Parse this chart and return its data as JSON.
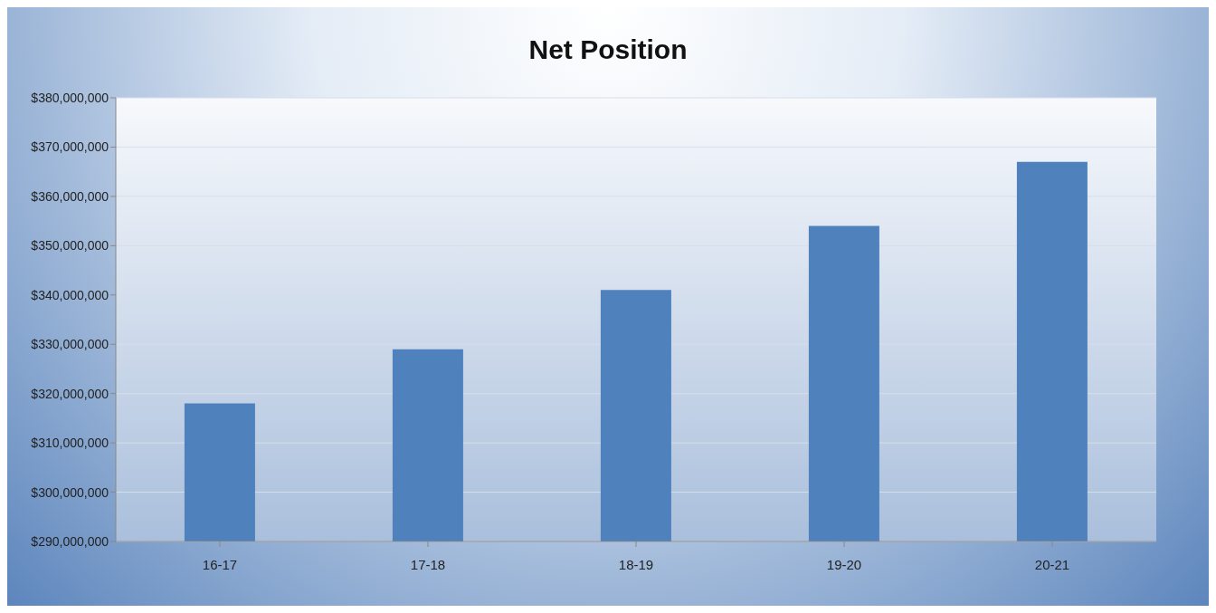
{
  "chart_data": {
    "type": "bar",
    "title": "Net Position",
    "categories": [
      "16-17",
      "17-18",
      "18-19",
      "19-20",
      "20-21"
    ],
    "values": [
      318000000,
      329000000,
      341000000,
      354000000,
      367000000
    ],
    "color": "#4f81bd",
    "ylim": [
      290000000,
      380000000
    ],
    "yticks": [
      {
        "value": 290000000,
        "label": "$290,000,000"
      },
      {
        "value": 300000000,
        "label": "$300,000,000"
      },
      {
        "value": 310000000,
        "label": "$310,000,000"
      },
      {
        "value": 320000000,
        "label": "$320,000,000"
      },
      {
        "value": 330000000,
        "label": "$330,000,000"
      },
      {
        "value": 340000000,
        "label": "$340,000,000"
      },
      {
        "value": 350000000,
        "label": "$350,000,000"
      },
      {
        "value": 360000000,
        "label": "$360,000,000"
      },
      {
        "value": 370000000,
        "label": "$370,000,000"
      },
      {
        "value": 380000000,
        "label": "$380,000,000"
      }
    ],
    "grid": "y",
    "legend": false
  }
}
